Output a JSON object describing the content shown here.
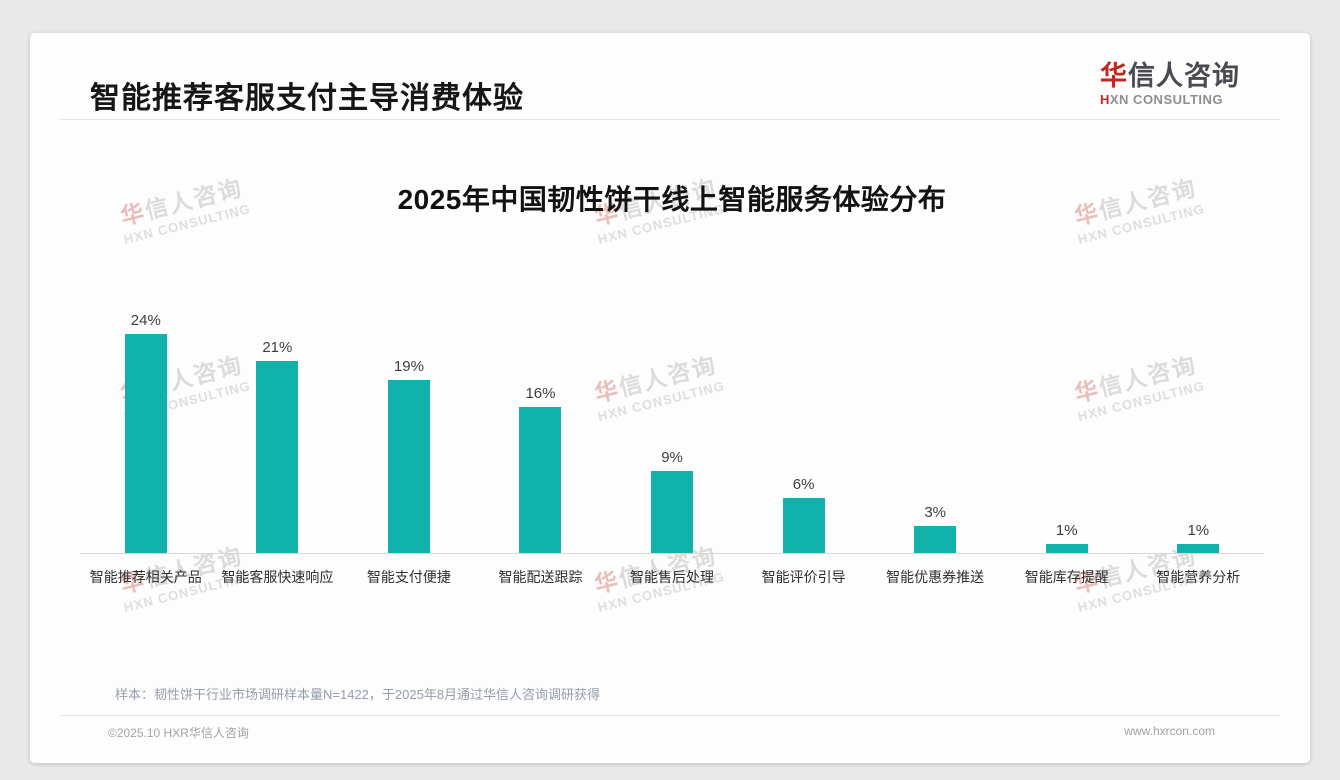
{
  "page": {
    "title": "智能推荐客服支付主导消费体验",
    "sample_note": "样本：韧性饼干行业市场调研样本量N=1422，于2025年8月通过华信人咨询调研获得",
    "footer_left": "©2025.10 HXR华信人咨询",
    "footer_right": "www.hxrcon.com"
  },
  "brand": {
    "logo_zh_first": "华",
    "logo_zh_rest": "信人咨询",
    "logo_en_first": "H",
    "logo_en_rest": "XN CONSULTING",
    "accent_red": "#c5271e"
  },
  "watermark": {
    "zh_first": "华",
    "zh_rest": "信人咨询",
    "en": "HXN CONSULTING"
  },
  "chart_data": {
    "type": "bar",
    "title": "2025年中国韧性饼干线上智能服务体验分布",
    "categories": [
      "智能推荐相关产品",
      "智能客服快速响应",
      "智能支付便捷",
      "智能配送跟踪",
      "智能售后处理",
      "智能评价引导",
      "智能优惠券推送",
      "智能库存提醒",
      "智能营养分析"
    ],
    "values": [
      24,
      21,
      19,
      16,
      9,
      6,
      3,
      1,
      1
    ],
    "unit": "%",
    "value_label_format": "{v}%",
    "bar_color": "#10b2ab",
    "value_label_color": "#3d3d3d",
    "title_color": "#121212",
    "ylim": [
      0,
      26
    ],
    "grid": false,
    "legend": false,
    "xlabel": "",
    "ylabel": ""
  }
}
